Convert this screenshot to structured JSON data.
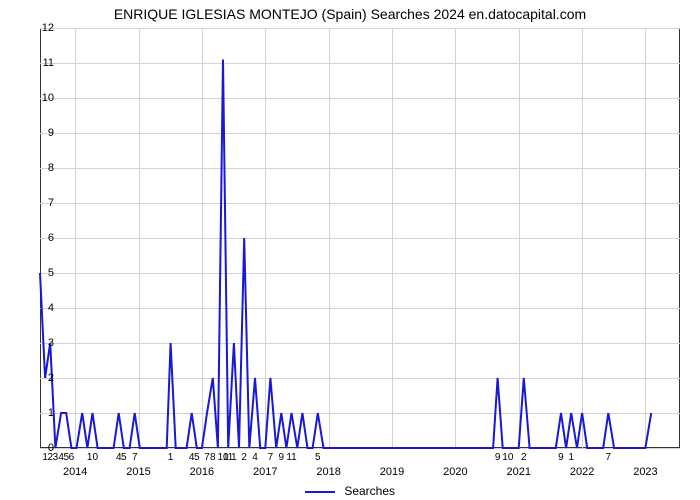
{
  "chart": {
    "type": "line",
    "title": "ENRIQUE IGLESIAS MONTEJO (Spain) Searches 2024 en.datocapital.com",
    "title_fontsize": 14,
    "background_color": "#ffffff",
    "grid_color": "#d3d3d3",
    "axis_color": "#333333",
    "yaxis": {
      "min": 0,
      "max": 12,
      "ticks": [
        0,
        1,
        2,
        3,
        4,
        5,
        6,
        7,
        8,
        9,
        10,
        11,
        12
      ],
      "tick_fontsize": 11
    },
    "xaxis": {
      "years": [
        "2014",
        "2015",
        "2016",
        "2017",
        "2018",
        "2019",
        "2020",
        "2021",
        "2022",
        "2023"
      ],
      "year_positions_pct": [
        5.5,
        15.4,
        25.3,
        35.2,
        45.1,
        55.0,
        64.9,
        74.8,
        84.7,
        94.6
      ],
      "month_labels": [
        {
          "pos_pct": 0.8,
          "text": "1"
        },
        {
          "pos_pct": 1.6,
          "text": "2"
        },
        {
          "pos_pct": 2.4,
          "text": "3"
        },
        {
          "pos_pct": 3.3,
          "text": "4"
        },
        {
          "pos_pct": 4.1,
          "text": "5"
        },
        {
          "pos_pct": 4.9,
          "text": "6"
        },
        {
          "pos_pct": 8.2,
          "text": "10"
        },
        {
          "pos_pct": 12.3,
          "text": "4"
        },
        {
          "pos_pct": 13.1,
          "text": "5"
        },
        {
          "pos_pct": 14.8,
          "text": "7"
        },
        {
          "pos_pct": 20.4,
          "text": "1"
        },
        {
          "pos_pct": 23.7,
          "text": "4"
        },
        {
          "pos_pct": 24.5,
          "text": "5"
        },
        {
          "pos_pct": 26.1,
          "text": "7"
        },
        {
          "pos_pct": 27.0,
          "text": "8"
        },
        {
          "pos_pct": 28.6,
          "text": "10"
        },
        {
          "pos_pct": 29.4,
          "text": "11"
        },
        {
          "pos_pct": 30.3,
          "text": "1"
        },
        {
          "pos_pct": 31.9,
          "text": "2"
        },
        {
          "pos_pct": 33.6,
          "text": "4"
        },
        {
          "pos_pct": 36.0,
          "text": "7"
        },
        {
          "pos_pct": 37.7,
          "text": "9"
        },
        {
          "pos_pct": 39.3,
          "text": "11"
        },
        {
          "pos_pct": 43.4,
          "text": "5"
        },
        {
          "pos_pct": 71.5,
          "text": "9"
        },
        {
          "pos_pct": 73.1,
          "text": "10"
        },
        {
          "pos_pct": 75.6,
          "text": "2"
        },
        {
          "pos_pct": 81.4,
          "text": "9"
        },
        {
          "pos_pct": 83.0,
          "text": "1"
        },
        {
          "pos_pct": 88.8,
          "text": "7"
        }
      ],
      "tick_fontsize": 10
    },
    "series": {
      "name": "Searches",
      "color": "#1818d6",
      "line_width": 2,
      "points": [
        {
          "x": 0.0,
          "y": 5
        },
        {
          "x": 0.8,
          "y": 2
        },
        {
          "x": 1.6,
          "y": 3
        },
        {
          "x": 2.4,
          "y": 0
        },
        {
          "x": 3.3,
          "y": 1
        },
        {
          "x": 4.1,
          "y": 1
        },
        {
          "x": 4.9,
          "y": 0
        },
        {
          "x": 5.7,
          "y": 0
        },
        {
          "x": 6.6,
          "y": 1
        },
        {
          "x": 7.4,
          "y": 0
        },
        {
          "x": 8.2,
          "y": 1
        },
        {
          "x": 9.0,
          "y": 0
        },
        {
          "x": 9.9,
          "y": 0
        },
        {
          "x": 10.7,
          "y": 0
        },
        {
          "x": 11.5,
          "y": 0
        },
        {
          "x": 12.3,
          "y": 1
        },
        {
          "x": 13.1,
          "y": 0
        },
        {
          "x": 14.0,
          "y": 0
        },
        {
          "x": 14.8,
          "y": 1
        },
        {
          "x": 15.6,
          "y": 0
        },
        {
          "x": 16.5,
          "y": 0
        },
        {
          "x": 17.3,
          "y": 0
        },
        {
          "x": 18.1,
          "y": 0
        },
        {
          "x": 18.9,
          "y": 0
        },
        {
          "x": 19.8,
          "y": 0
        },
        {
          "x": 20.4,
          "y": 3
        },
        {
          "x": 21.2,
          "y": 0
        },
        {
          "x": 22.1,
          "y": 0
        },
        {
          "x": 22.9,
          "y": 0
        },
        {
          "x": 23.7,
          "y": 1
        },
        {
          "x": 24.5,
          "y": 0
        },
        {
          "x": 25.3,
          "y": 0
        },
        {
          "x": 26.1,
          "y": 1
        },
        {
          "x": 27.0,
          "y": 2
        },
        {
          "x": 27.8,
          "y": 0
        },
        {
          "x": 28.6,
          "y": 11.1
        },
        {
          "x": 29.4,
          "y": 0
        },
        {
          "x": 30.3,
          "y": 3
        },
        {
          "x": 31.1,
          "y": 0
        },
        {
          "x": 31.9,
          "y": 6
        },
        {
          "x": 32.7,
          "y": 0
        },
        {
          "x": 33.6,
          "y": 2
        },
        {
          "x": 34.4,
          "y": 0
        },
        {
          "x": 35.2,
          "y": 0
        },
        {
          "x": 36.0,
          "y": 2
        },
        {
          "x": 36.9,
          "y": 0
        },
        {
          "x": 37.7,
          "y": 1
        },
        {
          "x": 38.5,
          "y": 0
        },
        {
          "x": 39.3,
          "y": 1
        },
        {
          "x": 40.2,
          "y": 0
        },
        {
          "x": 41.0,
          "y": 1
        },
        {
          "x": 41.8,
          "y": 0
        },
        {
          "x": 42.6,
          "y": 0
        },
        {
          "x": 43.4,
          "y": 1
        },
        {
          "x": 44.3,
          "y": 0
        },
        {
          "x": 45.1,
          "y": 0
        },
        {
          "x": 45.9,
          "y": 0
        },
        {
          "x": 46.8,
          "y": 0
        },
        {
          "x": 47.6,
          "y": 0
        },
        {
          "x": 48.4,
          "y": 0
        },
        {
          "x": 49.2,
          "y": 0
        },
        {
          "x": 50.1,
          "y": 0
        },
        {
          "x": 50.9,
          "y": 0
        },
        {
          "x": 51.7,
          "y": 0
        },
        {
          "x": 52.6,
          "y": 0
        },
        {
          "x": 53.4,
          "y": 0
        },
        {
          "x": 54.2,
          "y": 0
        },
        {
          "x": 55.0,
          "y": 0
        },
        {
          "x": 55.9,
          "y": 0
        },
        {
          "x": 56.7,
          "y": 0
        },
        {
          "x": 57.5,
          "y": 0
        },
        {
          "x": 58.3,
          "y": 0
        },
        {
          "x": 59.2,
          "y": 0
        },
        {
          "x": 60.0,
          "y": 0
        },
        {
          "x": 60.8,
          "y": 0
        },
        {
          "x": 61.7,
          "y": 0
        },
        {
          "x": 62.5,
          "y": 0
        },
        {
          "x": 63.3,
          "y": 0
        },
        {
          "x": 64.1,
          "y": 0
        },
        {
          "x": 65.0,
          "y": 0
        },
        {
          "x": 65.8,
          "y": 0
        },
        {
          "x": 66.6,
          "y": 0
        },
        {
          "x": 67.4,
          "y": 0
        },
        {
          "x": 68.3,
          "y": 0
        },
        {
          "x": 69.1,
          "y": 0
        },
        {
          "x": 69.9,
          "y": 0
        },
        {
          "x": 70.8,
          "y": 0
        },
        {
          "x": 71.5,
          "y": 2
        },
        {
          "x": 72.3,
          "y": 0
        },
        {
          "x": 73.1,
          "y": 0
        },
        {
          "x": 74.0,
          "y": 0
        },
        {
          "x": 74.8,
          "y": 0
        },
        {
          "x": 75.6,
          "y": 2
        },
        {
          "x": 76.5,
          "y": 0
        },
        {
          "x": 77.3,
          "y": 0
        },
        {
          "x": 78.1,
          "y": 0
        },
        {
          "x": 78.9,
          "y": 0
        },
        {
          "x": 79.8,
          "y": 0
        },
        {
          "x": 80.6,
          "y": 0
        },
        {
          "x": 81.4,
          "y": 1
        },
        {
          "x": 82.2,
          "y": 0
        },
        {
          "x": 83.0,
          "y": 1
        },
        {
          "x": 83.9,
          "y": 0
        },
        {
          "x": 84.7,
          "y": 1
        },
        {
          "x": 85.5,
          "y": 0
        },
        {
          "x": 86.4,
          "y": 0
        },
        {
          "x": 87.2,
          "y": 0
        },
        {
          "x": 88.0,
          "y": 0
        },
        {
          "x": 88.8,
          "y": 1
        },
        {
          "x": 89.7,
          "y": 0
        },
        {
          "x": 90.5,
          "y": 0
        },
        {
          "x": 91.3,
          "y": 0
        },
        {
          "x": 92.1,
          "y": 0
        },
        {
          "x": 93.0,
          "y": 0
        },
        {
          "x": 93.8,
          "y": 0
        },
        {
          "x": 94.6,
          "y": 0
        },
        {
          "x": 95.5,
          "y": 1
        }
      ]
    },
    "legend": {
      "label": "Searches",
      "fontsize": 12
    }
  }
}
